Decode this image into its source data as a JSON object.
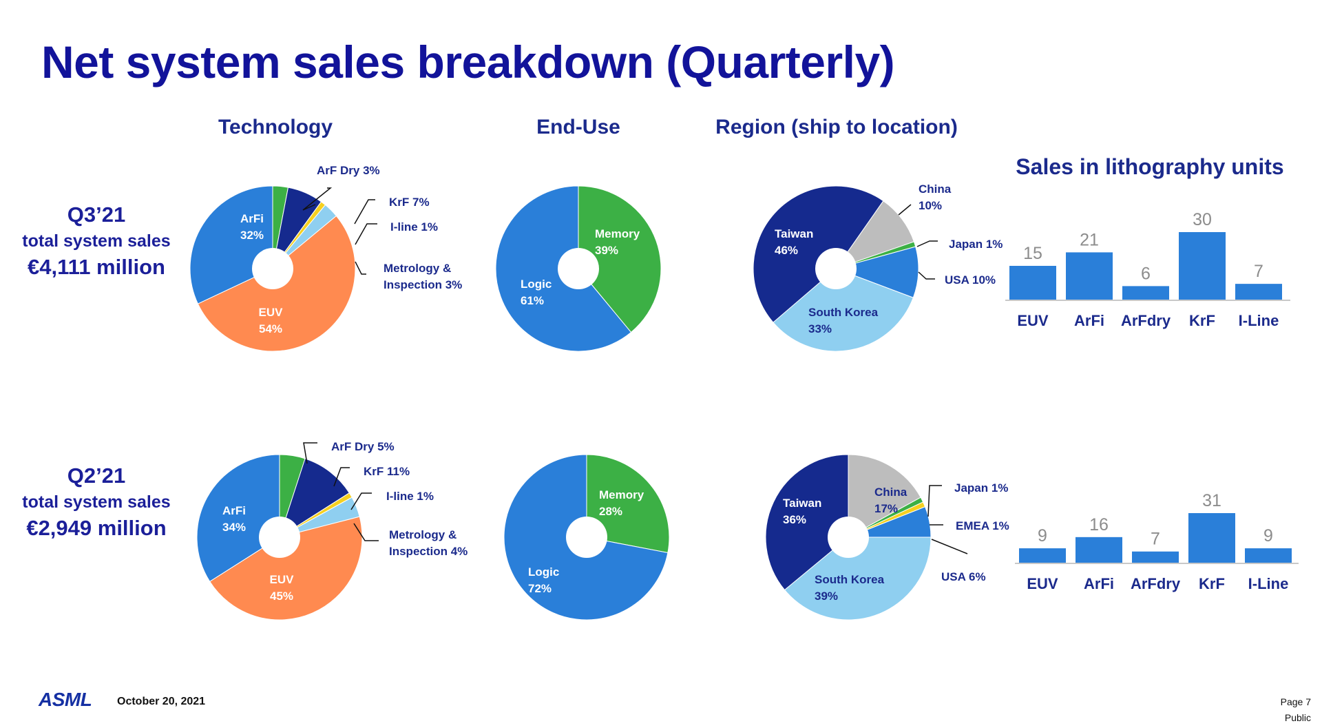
{
  "title": "Net system sales breakdown (Quarterly)",
  "columns": {
    "technology": "Technology",
    "end_use": "End-Use",
    "region": "Region (ship to location)"
  },
  "quarters": [
    {
      "label": "Q3’21",
      "subtitle": "total system sales",
      "amount": "€4,111 million"
    },
    {
      "label": "Q2’21",
      "subtitle": "total system sales",
      "amount": "€2,949 million"
    }
  ],
  "bar_title": "Sales in lithography units",
  "footer": {
    "logo": "ASML",
    "date": "October 20, 2021",
    "page": "Page 7",
    "classification": "Public"
  },
  "colors": {
    "EUV": "#ff8a50",
    "ArFi": "#2a7fd9",
    "ArF Dry": "#3cb045",
    "KrF": "#152a8e",
    "I-line": "#f5d020",
    "Metrology": "#8fcff0",
    "Memory": "#3cb045",
    "Logic": "#2a7fd9",
    "China": "#bdbdbd",
    "Japan": "#3cb045",
    "EMEA": "#f5d020",
    "USA": "#2a7fd9",
    "South Korea": "#8fcff0",
    "Taiwan": "#152a8e",
    "bar": "#2a7fd9",
    "title": "#12139a"
  },
  "chart_data": [
    {
      "type": "pie",
      "quarter": "Q3’21",
      "group": "Technology",
      "slices": [
        {
          "name": "ArF Dry",
          "value": 3,
          "label": "ArF Dry 3%"
        },
        {
          "name": "KrF",
          "value": 7,
          "label": "KrF 7%"
        },
        {
          "name": "I-line",
          "value": 1,
          "label": "I-line 1%"
        },
        {
          "name": "Metrology",
          "value": 3,
          "label": "Metrology &\nInspection 3%"
        },
        {
          "name": "EUV",
          "value": 54,
          "label": "EUV\n54%"
        },
        {
          "name": "ArFi",
          "value": 32,
          "label": "ArFi\n32%"
        }
      ]
    },
    {
      "type": "pie",
      "quarter": "Q3’21",
      "group": "End-Use",
      "slices": [
        {
          "name": "Memory",
          "value": 39,
          "label": "Memory\n39%"
        },
        {
          "name": "Logic",
          "value": 61,
          "label": "Logic\n61%"
        }
      ]
    },
    {
      "type": "pie",
      "quarter": "Q3’21",
      "group": "Region (ship to location)",
      "slices": [
        {
          "name": "China",
          "value": 10,
          "label": "China\n10%"
        },
        {
          "name": "Japan",
          "value": 1,
          "label": "Japan 1%"
        },
        {
          "name": "USA",
          "value": 10,
          "label": "USA 10%"
        },
        {
          "name": "South Korea",
          "value": 33,
          "label": "South Korea\n33%"
        },
        {
          "name": "Taiwan",
          "value": 46,
          "label": "Taiwan\n46%"
        }
      ]
    },
    {
      "type": "bar",
      "quarter": "Q3’21",
      "title": "Sales in lithography units",
      "categories": [
        "EUV",
        "ArFi",
        "ArFdry",
        "KrF",
        "I-Line"
      ],
      "values": [
        15,
        21,
        6,
        30,
        7
      ]
    },
    {
      "type": "pie",
      "quarter": "Q2’21",
      "group": "Technology",
      "slices": [
        {
          "name": "ArF Dry",
          "value": 5,
          "label": "ArF Dry 5%"
        },
        {
          "name": "KrF",
          "value": 11,
          "label": "KrF 11%"
        },
        {
          "name": "I-line",
          "value": 1,
          "label": "I-line 1%"
        },
        {
          "name": "Metrology",
          "value": 4,
          "label": "Metrology &\nInspection 4%"
        },
        {
          "name": "EUV",
          "value": 45,
          "label": "EUV\n45%"
        },
        {
          "name": "ArFi",
          "value": 34,
          "label": "ArFi\n34%"
        }
      ]
    },
    {
      "type": "pie",
      "quarter": "Q2’21",
      "group": "End-Use",
      "slices": [
        {
          "name": "Memory",
          "value": 28,
          "label": "Memory\n28%"
        },
        {
          "name": "Logic",
          "value": 72,
          "label": "Logic\n72%"
        }
      ]
    },
    {
      "type": "pie",
      "quarter": "Q2’21",
      "group": "Region (ship to location)",
      "slices": [
        {
          "name": "China",
          "value": 17,
          "label": "China\n17%"
        },
        {
          "name": "Japan",
          "value": 1,
          "label": "Japan 1%"
        },
        {
          "name": "EMEA",
          "value": 1,
          "label": "EMEA 1%"
        },
        {
          "name": "USA",
          "value": 6,
          "label": "USA 6%"
        },
        {
          "name": "South Korea",
          "value": 39,
          "label": "South Korea\n39%"
        },
        {
          "name": "Taiwan",
          "value": 36,
          "label": "Taiwan\n36%"
        }
      ]
    },
    {
      "type": "bar",
      "quarter": "Q2’21",
      "categories": [
        "EUV",
        "ArFi",
        "ArFdry",
        "KrF",
        "I-Line"
      ],
      "values": [
        9,
        16,
        7,
        31,
        9
      ]
    }
  ]
}
